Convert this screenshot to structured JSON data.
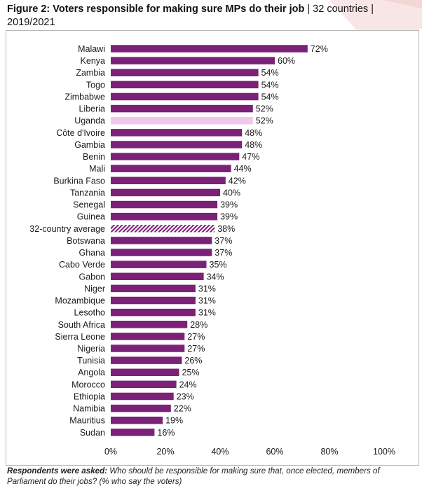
{
  "figure": {
    "title_bold": "Figure 2: Voters responsible for making sure MPs do their job",
    "title_rest": "| 32 countries | 2019/2021"
  },
  "footnote": {
    "label": "Respondents were asked:",
    "text": "Who should be responsible for making sure that, once elected, members of Parliament do their jobs? (% who say the voters)"
  },
  "colors": {
    "bar": "#7b2177",
    "highlight": "#efc8ec",
    "average_hatch": "#7b2177",
    "watermark": "#f6dede"
  },
  "chart_data": {
    "type": "bar",
    "orientation": "horizontal",
    "title": "Voters responsible for making sure MPs do their job",
    "xlabel": "",
    "ylabel": "",
    "xlim": [
      0,
      100
    ],
    "x_ticks": [
      "0%",
      "20%",
      "40%",
      "60%",
      "80%",
      "100%"
    ],
    "value_suffix": "%",
    "grid": false,
    "highlight_category": "Uganda",
    "average_category": "32-country average",
    "categories": [
      "Malawi",
      "Kenya",
      "Zambia",
      "Togo",
      "Zimbabwe",
      "Liberia",
      "Uganda",
      "Côte d'Ivoire",
      "Gambia",
      "Benin",
      "Mali",
      "Burkina Faso",
      "Tanzania",
      "Senegal",
      "Guinea",
      "32-country average",
      "Botswana",
      "Ghana",
      "Cabo Verde",
      "Gabon",
      "Niger",
      "Mozambique",
      "Lesotho",
      "South Africa",
      "Sierra Leone",
      "Nigeria",
      "Tunisia",
      "Angola",
      "Morocco",
      "Ethiopia",
      "Namibia",
      "Mauritius",
      "Sudan"
    ],
    "values": [
      72,
      60,
      54,
      54,
      54,
      52,
      52,
      48,
      48,
      47,
      44,
      42,
      40,
      39,
      39,
      38,
      37,
      37,
      35,
      34,
      31,
      31,
      31,
      28,
      27,
      27,
      26,
      25,
      24,
      23,
      22,
      19,
      16
    ]
  }
}
